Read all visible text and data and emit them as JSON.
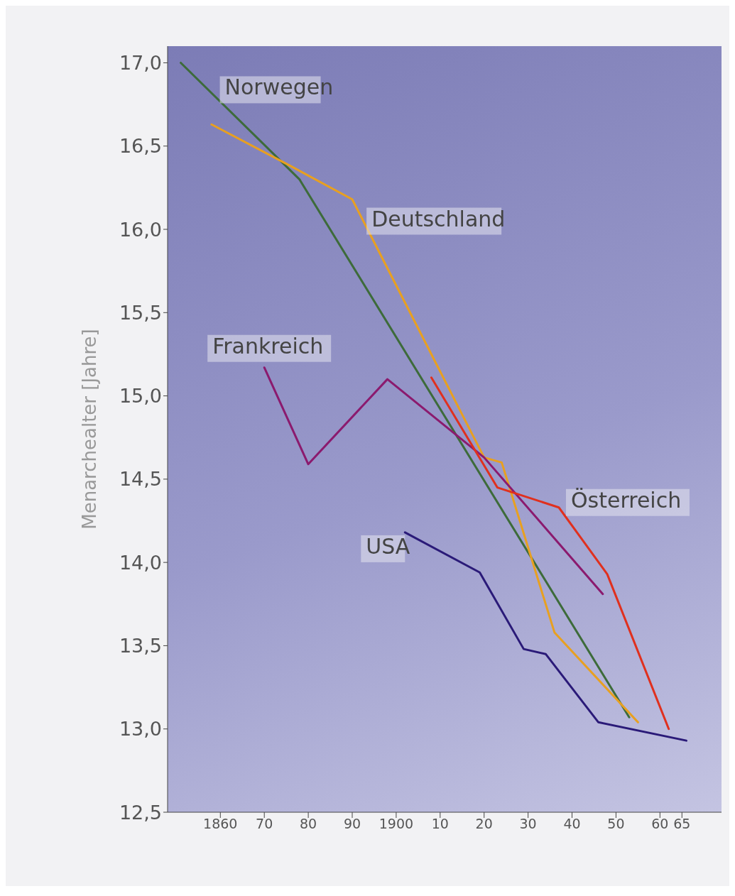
{
  "chart_data": {
    "type": "line",
    "ylabel": "Menarchealter [Jahre]",
    "xlim": [
      1848,
      1974
    ],
    "ylim": [
      12.5,
      17.1
    ],
    "xticks": [
      1860,
      {
        "value": 1870,
        "label": "70"
      },
      {
        "value": 1880,
        "label": "80"
      },
      {
        "value": 1890,
        "label": "90"
      },
      1900,
      {
        "value": 1910,
        "label": "10"
      },
      {
        "value": 1920,
        "label": "20"
      },
      {
        "value": 1930,
        "label": "30"
      },
      {
        "value": 1940,
        "label": "40"
      },
      {
        "value": 1950,
        "label": "50"
      },
      {
        "value": 1960,
        "label": "60"
      },
      {
        "value": 1965,
        "label": "65"
      }
    ],
    "yticks": [
      {
        "value": 12.5,
        "label": "12,5"
      },
      {
        "value": 13,
        "label": "13,0"
      },
      {
        "value": 13.5,
        "label": "13,5"
      },
      {
        "value": 14,
        "label": "14,0"
      },
      {
        "value": 14.5,
        "label": "14,5"
      },
      {
        "value": 15,
        "label": "15,0"
      },
      {
        "value": 15.5,
        "label": "15,5"
      },
      {
        "value": 16,
        "label": "16,0"
      },
      {
        "value": 16.5,
        "label": "16,5"
      },
      {
        "value": 17,
        "label": "17,0"
      }
    ],
    "grid": false,
    "legend": false,
    "marker": "none",
    "line_style": "solid",
    "series": [
      {
        "name": "Norwegen",
        "color": "#3d6b3a",
        "x": [
          1851,
          1878,
          1953
        ],
        "values": [
          17.0,
          16.3,
          13.07
        ]
      },
      {
        "name": "Deutschland",
        "color": "#e8a020",
        "x": [
          1858,
          1876,
          1890,
          1896,
          1920,
          1924,
          1936,
          1955
        ],
        "values": [
          16.63,
          16.38,
          16.18,
          15.87,
          14.63,
          14.6,
          13.58,
          13.04
        ]
      },
      {
        "name": "Frankreich",
        "color": "#8b1a6e",
        "x": [
          1870,
          1880,
          1898,
          1920,
          1947
        ],
        "values": [
          15.17,
          14.59,
          15.1,
          14.63,
          13.81
        ]
      },
      {
        "name": "Österreich",
        "color": "#e0301e",
        "x": [
          1908,
          1923,
          1937,
          1948,
          1962
        ],
        "values": [
          15.11,
          14.45,
          14.33,
          13.93,
          13.0
        ]
      },
      {
        "name": "USA",
        "color": "#2a1a78",
        "x": [
          1902,
          1919,
          1929,
          1934,
          1946,
          1966
        ],
        "values": [
          14.18,
          13.94,
          13.48,
          13.45,
          13.04,
          12.93
        ]
      }
    ]
  }
}
